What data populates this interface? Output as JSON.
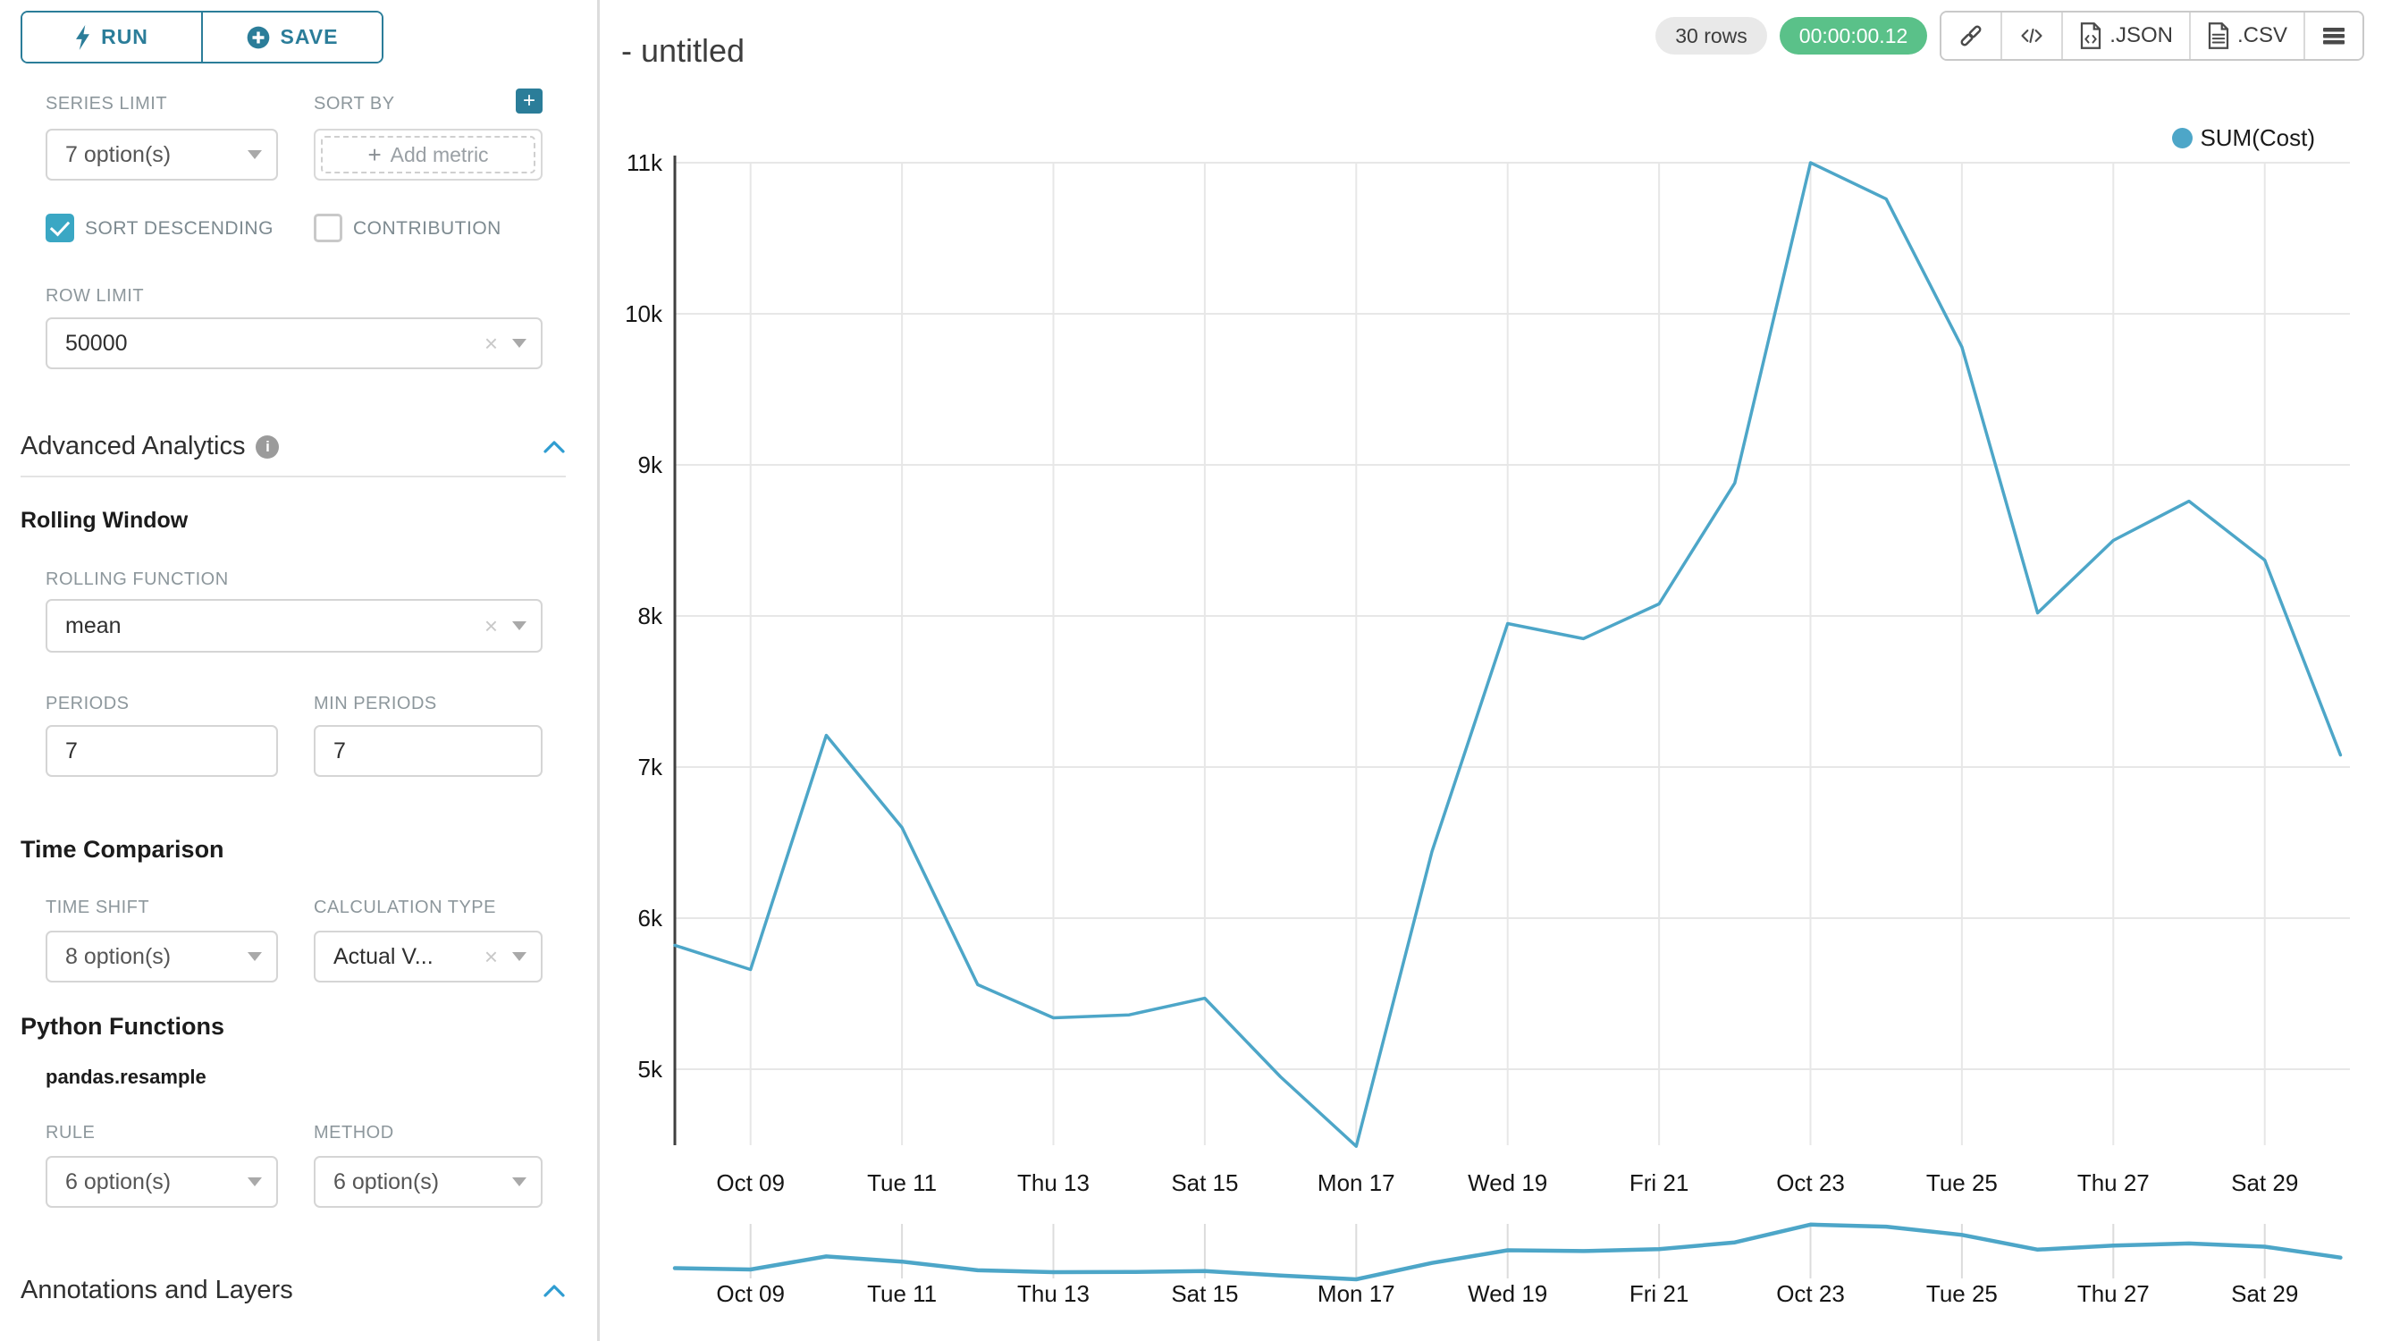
{
  "colors": {
    "accent": "#2b7d99",
    "checkbox": "#3aa7c4",
    "chevron": "#2f9dd1",
    "line": "#4da6c8",
    "gridline": "#e7e7e7",
    "mini_tick": "#dcdcdc",
    "axis": "#3f3f3f",
    "tick_text": "#151515",
    "badge_green": "#5ac189",
    "badge_gray": "#e9e9e9"
  },
  "sidebar": {
    "run_label": "RUN",
    "save_label": "SAVE",
    "series_limit": {
      "label": "SERIES LIMIT",
      "value": "7 option(s)"
    },
    "sort_by": {
      "label": "SORT BY",
      "placeholder": "Add metric",
      "plus": "+"
    },
    "sort_descending_label": "SORT DESCENDING",
    "contribution_label": "CONTRIBUTION",
    "row_limit": {
      "label": "ROW LIMIT",
      "value": "50000"
    },
    "advanced_analytics_title": "Advanced Analytics",
    "rolling_window": {
      "title": "Rolling Window",
      "rolling_function": {
        "label": "ROLLING FUNCTION",
        "value": "mean"
      },
      "periods": {
        "label": "PERIODS",
        "value": "7"
      },
      "min_periods": {
        "label": "MIN PERIODS",
        "value": "7"
      }
    },
    "time_comparison": {
      "title": "Time Comparison",
      "time_shift": {
        "label": "TIME SHIFT",
        "value": "8 option(s)"
      },
      "calculation_type": {
        "label": "CALCULATION TYPE",
        "value": "Actual V..."
      }
    },
    "python_functions": {
      "title": "Python Functions",
      "subtitle": "pandas.resample",
      "rule": {
        "label": "RULE",
        "value": "6 option(s)"
      },
      "method": {
        "label": "METHOD",
        "value": "6 option(s)"
      }
    },
    "annotations_title": "Annotations and Layers"
  },
  "header": {
    "title": "- untitled",
    "rows_badge": "30 rows",
    "timer_badge": "00:00:00.12",
    "json_label": ".JSON",
    "csv_label": ".CSV"
  },
  "chart_data": {
    "type": "line",
    "title": "",
    "legend_position": "top-right",
    "grid": true,
    "x_axis_type": "time",
    "ylim": [
      4400,
      11000
    ],
    "dates": [
      "Oct 08",
      "Oct 09",
      "Oct 10",
      "Oct 11",
      "Oct 12",
      "Oct 13",
      "Oct 14",
      "Oct 15",
      "Oct 16",
      "Oct 17",
      "Oct 18",
      "Oct 19",
      "Oct 20",
      "Oct 21",
      "Oct 22",
      "Oct 23",
      "Oct 24",
      "Oct 25",
      "Oct 26",
      "Oct 27",
      "Oct 28",
      "Oct 29",
      "Oct 30"
    ],
    "series": [
      {
        "name": "SUM(Cost)",
        "values": [
          5820,
          5660,
          7210,
          6600,
          5560,
          5340,
          5360,
          5470,
          4950,
          4490,
          6440,
          7950,
          7850,
          8080,
          8880,
          11000,
          10760,
          9780,
          8020,
          8500,
          8760,
          8370,
          7080
        ]
      }
    ],
    "y_ticks": [
      {
        "label": "5k",
        "value": 5000
      },
      {
        "label": "6k",
        "value": 6000
      },
      {
        "label": "7k",
        "value": 7000
      },
      {
        "label": "8k",
        "value": 8000
      },
      {
        "label": "9k",
        "value": 9000
      },
      {
        "label": "10k",
        "value": 10000
      },
      {
        "label": "11k",
        "value": 11000
      }
    ],
    "x_ticks": [
      {
        "index": 1,
        "label": "Oct 09"
      },
      {
        "index": 3,
        "label": "Tue 11"
      },
      {
        "index": 5,
        "label": "Thu 13"
      },
      {
        "index": 7,
        "label": "Sat 15"
      },
      {
        "index": 9,
        "label": "Mon 17"
      },
      {
        "index": 11,
        "label": "Wed 19"
      },
      {
        "index": 13,
        "label": "Fri 21"
      },
      {
        "index": 15,
        "label": "Oct 23"
      },
      {
        "index": 17,
        "label": "Tue 25"
      },
      {
        "index": 19,
        "label": "Thu 27"
      },
      {
        "index": 21,
        "label": "Sat 29"
      }
    ],
    "has_mini_preview": true
  }
}
